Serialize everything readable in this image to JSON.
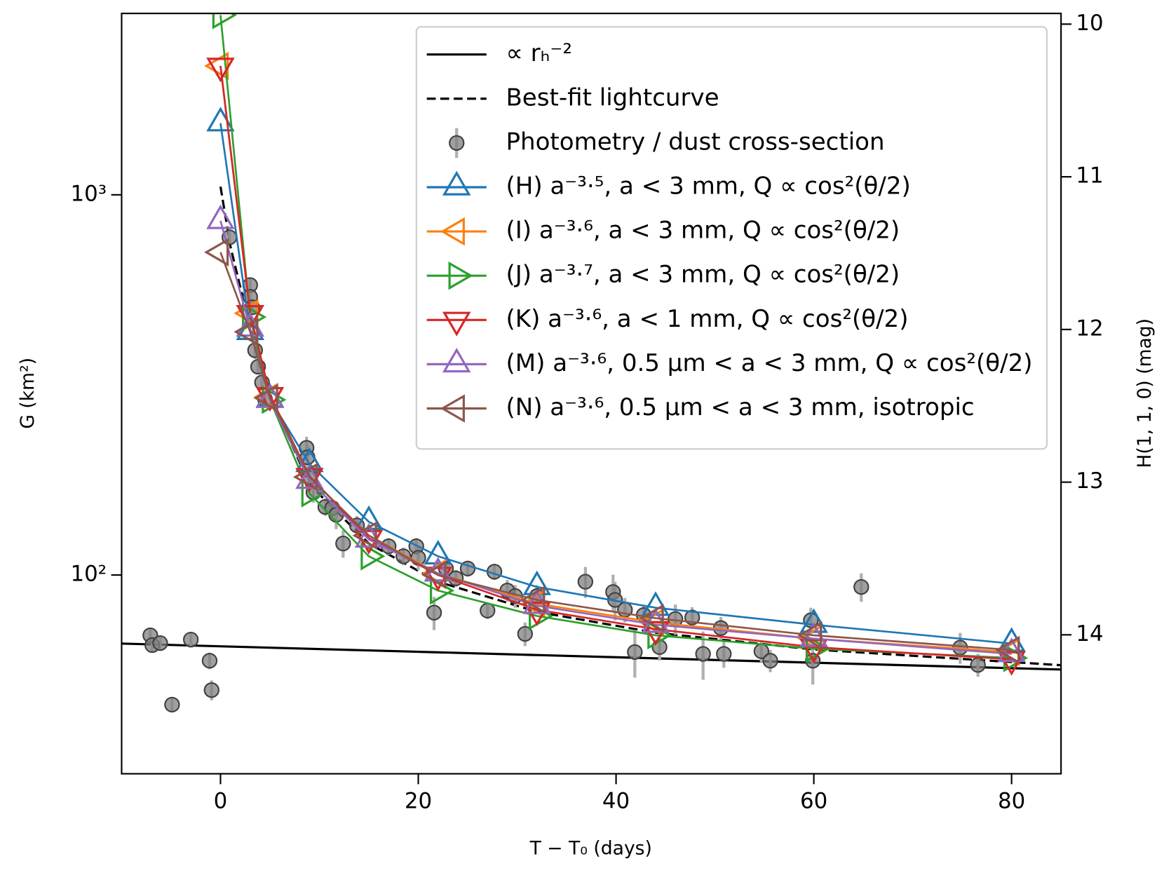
{
  "chart_data": {
    "type": "line",
    "xlabel": "T − T₀ (days)",
    "ylabel": "G (km²)",
    "y2label": "H(1, 1, 0) (mag)",
    "xlim": [
      -10,
      85
    ],
    "xticks": [
      0,
      20,
      40,
      60,
      80
    ],
    "ylim": [
      30,
      3000
    ],
    "yscale": "log",
    "yticks": [
      {
        "value": 100,
        "label": "10²"
      },
      {
        "value": 1000,
        "label": "10³"
      }
    ],
    "y2lim": [
      14.91,
      9.93
    ],
    "y2ticks": [
      10,
      11,
      12,
      13,
      14
    ],
    "legend": "upper right",
    "series": [
      {
        "name": "∝ rₕ⁻²",
        "color": "#000000",
        "style": "solid",
        "x": [
          -10,
          85
        ],
        "values": [
          66,
          56.4
        ]
      },
      {
        "name": "Best-fit lightcurve",
        "color": "#000000",
        "style": "dashed",
        "x": [
          0,
          1,
          3,
          5,
          9,
          15,
          22,
          32,
          44,
          60,
          85
        ],
        "values": [
          1051,
          732,
          446,
          297,
          173,
          121,
          96,
          80,
          70.5,
          63.7,
          57.9
        ]
      },
      {
        "name": "Photometry / dust cross-section",
        "color": "#808080",
        "style": "none",
        "marker": "circle",
        "x": [
          -7.1,
          -6.9,
          -6.1,
          -3.0,
          -1.1,
          -0.9,
          -4.9,
          0.9,
          3.0,
          3.0,
          3.2,
          3.5,
          3.8,
          4.2,
          4.5,
          8.7,
          8.8,
          9.0,
          9.4,
          10.6,
          11.3,
          11.7,
          12.4,
          13.8,
          17.0,
          18.5,
          19.8,
          20.0,
          21.6,
          22.8,
          23.8,
          25.0,
          27.0,
          27.7,
          29.0,
          29.8,
          30.8,
          32.0,
          36.9,
          39.7,
          39.9,
          40.9,
          41.9,
          42.8,
          44.4,
          46.0,
          47.7,
          48.8,
          50.6,
          50.9,
          54.7,
          55.6,
          59.7,
          59.9,
          64.8,
          74.8,
          76.6
        ],
        "values": [
          69.4,
          65.4,
          66.2,
          67.6,
          59.5,
          49.8,
          45.6,
          773,
          579,
          539,
          506,
          390,
          353,
          321,
          290,
          216,
          204,
          181,
          165,
          151,
          150,
          144,
          121,
          135,
          119,
          112,
          119,
          111,
          79.6,
          104,
          98,
          104,
          80.6,
          102,
          91,
          88,
          70,
          88,
          96,
          90.2,
          86,
          81,
          62.7,
          78.5,
          64.6,
          76.6,
          77.3,
          62,
          72.5,
          62,
          63,
          59.5,
          76,
          59.5,
          93,
          64.4,
          58
        ],
        "errors": [
          3,
          3,
          3,
          3,
          3,
          3,
          2,
          30,
          25,
          25,
          20,
          20,
          15,
          15,
          12,
          15,
          15,
          12,
          10,
          8,
          8,
          12,
          10,
          8,
          6,
          6,
          6,
          8,
          8,
          6,
          5,
          5,
          4,
          5,
          6,
          6,
          5,
          6,
          9,
          10,
          10,
          6,
          9,
          5,
          5,
          7,
          5,
          9,
          5,
          5,
          4,
          4,
          6,
          8,
          8,
          6,
          4
        ]
      },
      {
        "name": "(H) a⁻³·⁵, a < 3 mm, Q ∝ cos²(θ/2)",
        "color": "#1f77b4",
        "style": "solid",
        "marker": "up",
        "x": [
          0,
          3,
          5,
          9,
          15,
          22,
          32,
          44,
          60,
          80
        ],
        "values": [
          1543,
          436,
          290,
          196,
          138,
          112,
          93,
          82,
          74,
          66
        ]
      },
      {
        "name": "(I) a⁻³·⁶, a < 3 mm, Q ∝ cos²(θ/2)",
        "color": "#ff7f0e",
        "style": "solid",
        "marker": "left",
        "x": [
          0,
          3,
          5,
          9,
          15,
          22,
          32,
          44,
          60,
          80
        ],
        "values": [
          2183,
          488,
          294,
          181,
          127,
          101,
          84,
          75,
          68,
          62.7
        ]
      },
      {
        "name": "(J) a⁻³·⁷, a < 3 mm, Q ∝ cos²(θ/2)",
        "color": "#2ca02c",
        "style": "solid",
        "marker": "right",
        "x": [
          0,
          3,
          5,
          9,
          15,
          22,
          32,
          44,
          60,
          80
        ],
        "values": [
          2970,
          477,
          289,
          164,
          112,
          91,
          78,
          69.4,
          64,
          60.5
        ]
      },
      {
        "name": "(K) a⁻³·⁶, a < 1 mm, Q ∝ cos²(θ/2)",
        "color": "#d62728",
        "style": "solid",
        "marker": "down",
        "x": [
          0,
          3,
          5,
          9,
          15,
          22,
          32,
          44,
          60,
          80
        ],
        "values": [
          2183,
          488,
          297,
          182,
          125,
          100,
          81,
          72,
          64.6,
          60
        ]
      },
      {
        "name": "(M) a⁻³·⁶, 0.5 µm < a < 3 mm, Q ∝ cos²(θ/2)",
        "color": "#9467bd",
        "style": "solid",
        "marker": "up",
        "x": [
          0,
          3,
          5,
          9,
          15,
          22,
          32,
          44,
          60,
          80
        ],
        "values": [
          854,
          445,
          289,
          177,
          124,
          101,
          83,
          74,
          68,
          62
        ]
      },
      {
        "name": "(N) a⁻³·⁶, 0.5 µm < a < 3 mm, isotropic",
        "color": "#8c564b",
        "style": "solid",
        "marker": "left",
        "x": [
          0,
          3,
          5,
          9,
          15,
          22,
          32,
          44,
          60,
          80
        ],
        "values": [
          706,
          436,
          292,
          181,
          127,
          100,
          86,
          77,
          69.4,
          63.5
        ]
      }
    ]
  }
}
